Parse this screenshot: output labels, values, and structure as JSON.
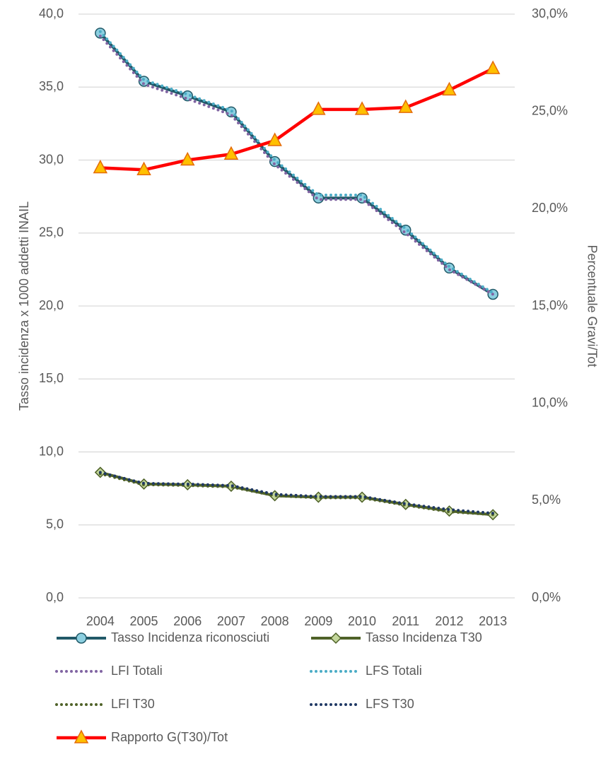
{
  "chart_data": {
    "type": "line",
    "y_label": "Tasso incidenza x 1000 addetti INAIL",
    "y2_label": "Percentuale Gravi/Tot",
    "categories": [
      "2004",
      "2005",
      "2006",
      "2007",
      "2008",
      "2009",
      "2010",
      "2011",
      "2012",
      "2013"
    ],
    "ylim": [
      0,
      40
    ],
    "yticks": [
      {
        "value": 0,
        "label": "0,0"
      },
      {
        "value": 5,
        "label": "5,0"
      },
      {
        "value": 10,
        "label": "10,0"
      },
      {
        "value": 15,
        "label": "15,0"
      },
      {
        "value": 20,
        "label": "20,0"
      },
      {
        "value": 25,
        "label": "25,0"
      },
      {
        "value": 30,
        "label": "30,0"
      },
      {
        "value": 35,
        "label": "35,0"
      },
      {
        "value": 40,
        "label": "40,0"
      }
    ],
    "y2lim": [
      0,
      30
    ],
    "y2ticks": [
      {
        "value": 0,
        "label": "0,0%"
      },
      {
        "value": 5,
        "label": "5,0%"
      },
      {
        "value": 10,
        "label": "10,0%"
      },
      {
        "value": 15,
        "label": "15,0%"
      },
      {
        "value": 20,
        "label": "20,0%"
      },
      {
        "value": 25,
        "label": "25,0%"
      },
      {
        "value": 30,
        "label": "30,0%"
      }
    ],
    "grid": true,
    "legend": "bottom",
    "series": [
      {
        "name": "Tasso Incidenza riconosciuti",
        "color": "#215968",
        "marker": "circle",
        "marker_color": "#8ccfe0",
        "dash": "solid",
        "values": [
          38.7,
          35.4,
          34.4,
          33.3,
          29.9,
          27.4,
          27.4,
          25.2,
          22.6,
          20.8
        ]
      },
      {
        "name": "Tasso Incidenza T30",
        "color": "#4f6228",
        "marker": "diamond",
        "marker_color": "#c3d69b",
        "dash": "solid",
        "values": [
          8.6,
          7.8,
          7.75,
          7.65,
          7.0,
          6.9,
          6.9,
          6.4,
          5.95,
          5.7
        ]
      },
      {
        "name": "LFI Totali",
        "color": "#8064a2",
        "dash": "dotted",
        "values": [
          38.5,
          35.2,
          34.2,
          33.1,
          29.7,
          27.3,
          27.3,
          25.0,
          22.5,
          20.8
        ]
      },
      {
        "name": "LFS Totali",
        "color": "#4bacc6",
        "dash": "dotted",
        "values": [
          38.8,
          35.5,
          34.5,
          33.4,
          30.0,
          27.6,
          27.6,
          25.3,
          22.7,
          20.9
        ]
      },
      {
        "name": "LFI T30",
        "color": "#4f6228",
        "dash": "dotted",
        "values": [
          8.5,
          7.75,
          7.7,
          7.6,
          7.0,
          6.85,
          6.85,
          6.35,
          5.9,
          5.7
        ]
      },
      {
        "name": "LFS T30",
        "color": "#1f3864",
        "dash": "dotted",
        "values": [
          8.6,
          7.85,
          7.8,
          7.7,
          7.1,
          6.95,
          6.95,
          6.45,
          6.05,
          5.8
        ]
      },
      {
        "name": "Rapporto G(T30)/Tot",
        "color": "#ff0000",
        "marker": "triangle",
        "marker_color": "#ffc000",
        "dash": "solid",
        "axis": "y2",
        "values": [
          22.1,
          22.0,
          22.5,
          22.8,
          23.5,
          25.1,
          25.1,
          25.2,
          26.1,
          27.2
        ]
      }
    ]
  }
}
